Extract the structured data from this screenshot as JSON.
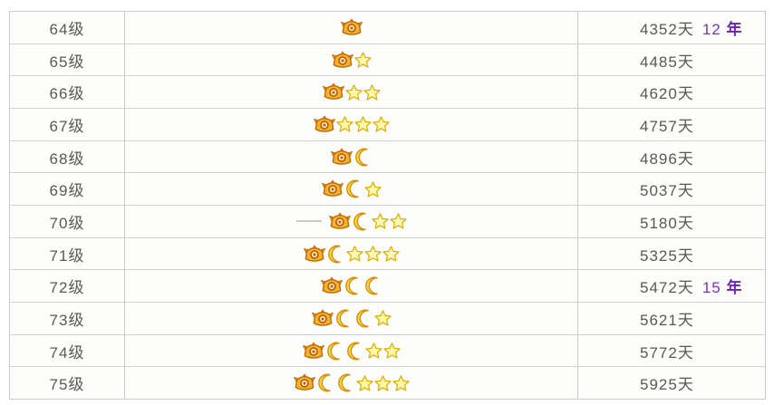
{
  "page": {
    "background": "#ffffff"
  },
  "table": {
    "description": "QQ level icon table: levels 64-75 with crown/moon/star icons, required online days, and year milestones",
    "border_color": "#cbcbcb",
    "text_color": "#58585a",
    "year_color": "#7d2fc0",
    "icons": {
      "crown": "crown-icon",
      "moon": "moon-icon",
      "star": "star-icon"
    },
    "icon_colors": {
      "crown_fill": "#f6b12f",
      "crown_stroke": "#c06800",
      "crown_tip": "#e2590a",
      "crown_jewel": "#fff3c4",
      "moon_fill": "#ffd94e",
      "moon_stroke": "#d88d00",
      "star_fill": "#fff7ad",
      "star_stroke": "#ddaf00"
    },
    "rows": [
      {
        "level": "64级",
        "crowns": 1,
        "moons": 0,
        "stars": 0,
        "days": "4352天",
        "years": "12年",
        "dash": false
      },
      {
        "level": "65级",
        "crowns": 1,
        "moons": 0,
        "stars": 1,
        "days": "4485天",
        "years": "",
        "dash": false
      },
      {
        "level": "66级",
        "crowns": 1,
        "moons": 0,
        "stars": 2,
        "days": "4620天",
        "years": "",
        "dash": false
      },
      {
        "level": "67级",
        "crowns": 1,
        "moons": 0,
        "stars": 3,
        "days": "4757天",
        "years": "",
        "dash": false
      },
      {
        "level": "68级",
        "crowns": 1,
        "moons": 1,
        "stars": 0,
        "days": "4896天",
        "years": "",
        "dash": false
      },
      {
        "level": "69级",
        "crowns": 1,
        "moons": 1,
        "stars": 1,
        "days": "5037天",
        "years": "",
        "dash": false
      },
      {
        "level": "70级",
        "crowns": 1,
        "moons": 1,
        "stars": 2,
        "days": "5180天",
        "years": "",
        "dash": true
      },
      {
        "level": "71级",
        "crowns": 1,
        "moons": 1,
        "stars": 3,
        "days": "5325天",
        "years": "",
        "dash": false
      },
      {
        "level": "72级",
        "crowns": 1,
        "moons": 2,
        "stars": 0,
        "days": "5472天",
        "years": "15年",
        "dash": false
      },
      {
        "level": "73级",
        "crowns": 1,
        "moons": 2,
        "stars": 1,
        "days": "5621天",
        "years": "",
        "dash": false
      },
      {
        "level": "74级",
        "crowns": 1,
        "moons": 2,
        "stars": 2,
        "days": "5772天",
        "years": "",
        "dash": false
      },
      {
        "level": "75级",
        "crowns": 1,
        "moons": 2,
        "stars": 3,
        "days": "5925天",
        "years": "",
        "dash": false
      }
    ]
  }
}
